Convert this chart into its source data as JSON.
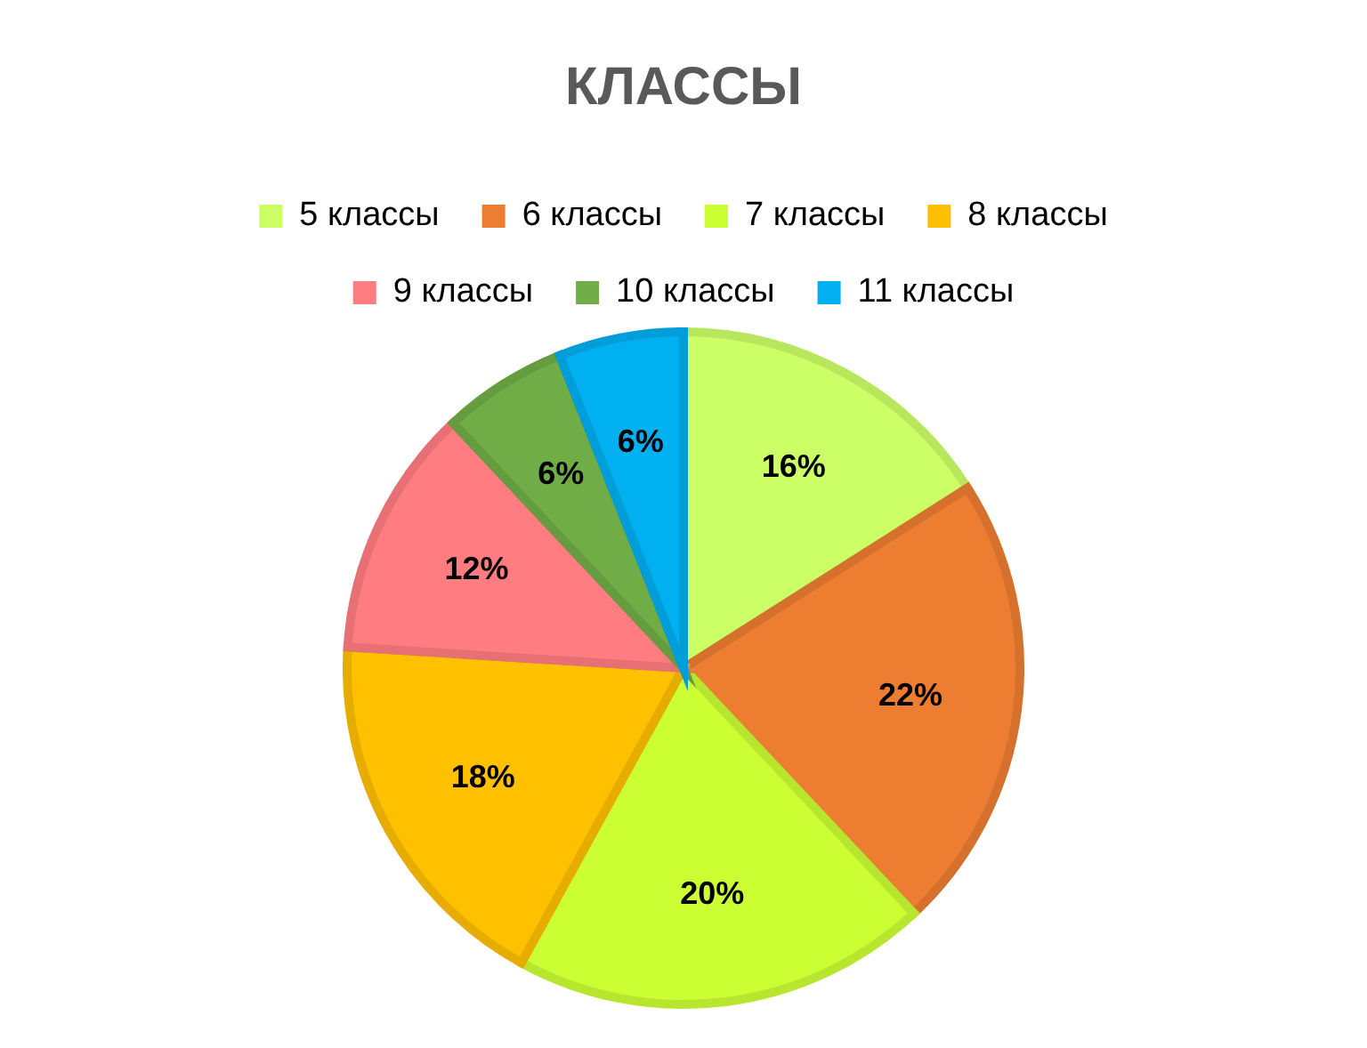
{
  "chart_data": {
    "type": "pie",
    "title": "КЛАССЫ",
    "categories": [
      "5 классы",
      "6 классы",
      "7 классы",
      "8 классы",
      "9 классы",
      "10 классы",
      "11 классы"
    ],
    "values": [
      16,
      22,
      20,
      18,
      12,
      6,
      6
    ],
    "value_labels": [
      "16%",
      "22%",
      "20%",
      "18%",
      "12%",
      "6%",
      "6%"
    ],
    "colors": [
      "#ccff66",
      "#ed7d31",
      "#ccff33",
      "#ffc000",
      "#ff7c80",
      "#70ad47",
      "#00b0f0"
    ],
    "legend": "top"
  }
}
